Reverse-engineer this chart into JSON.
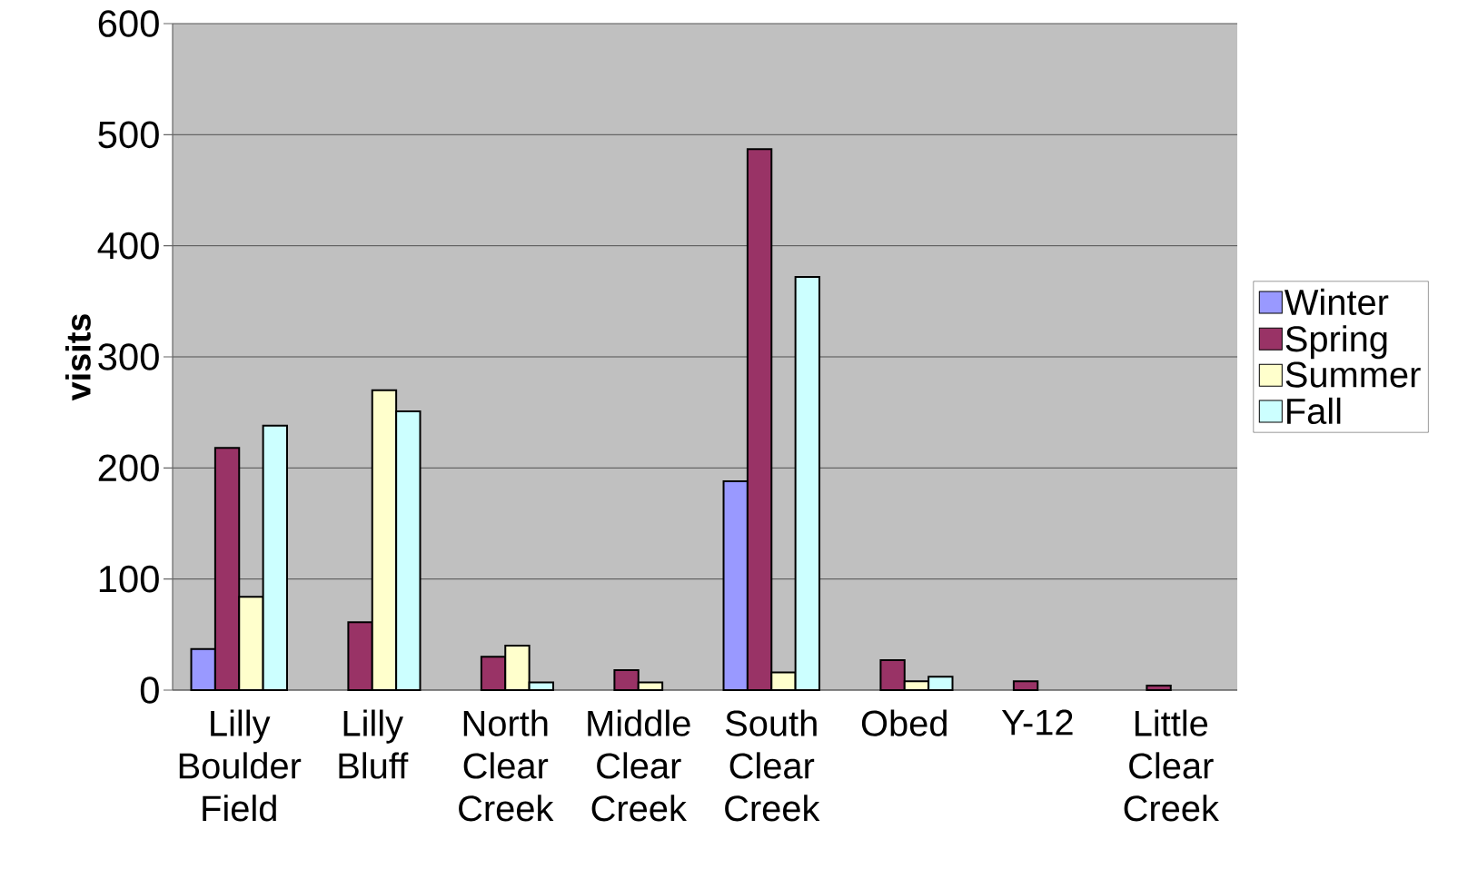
{
  "chart_data": {
    "type": "bar",
    "ylabel": "visits",
    "categories": [
      "Lilly Boulder Field",
      "Lilly Bluff",
      "North Clear Creek",
      "Middle Clear Creek",
      "South Clear Creek",
      "Obed",
      "Y-12",
      "Little Clear Creek"
    ],
    "series": [
      {
        "name": "Winter",
        "color": "#9999ff",
        "values": [
          37,
          null,
          null,
          null,
          188,
          null,
          null,
          null
        ]
      },
      {
        "name": "Spring",
        "color": "#993366",
        "values": [
          218,
          61,
          30,
          18,
          487,
          27,
          8,
          4
        ]
      },
      {
        "name": "Summer",
        "color": "#ffffcc",
        "values": [
          84,
          270,
          40,
          7,
          16,
          8,
          null,
          null
        ]
      },
      {
        "name": "Fall",
        "color": "#ccffff",
        "values": [
          238,
          251,
          7,
          null,
          372,
          12,
          null,
          null
        ]
      }
    ],
    "ylim": [
      0,
      600
    ],
    "yticks": [
      0,
      100,
      200,
      300,
      400,
      500,
      600
    ],
    "grid": "y",
    "legend": "right"
  }
}
